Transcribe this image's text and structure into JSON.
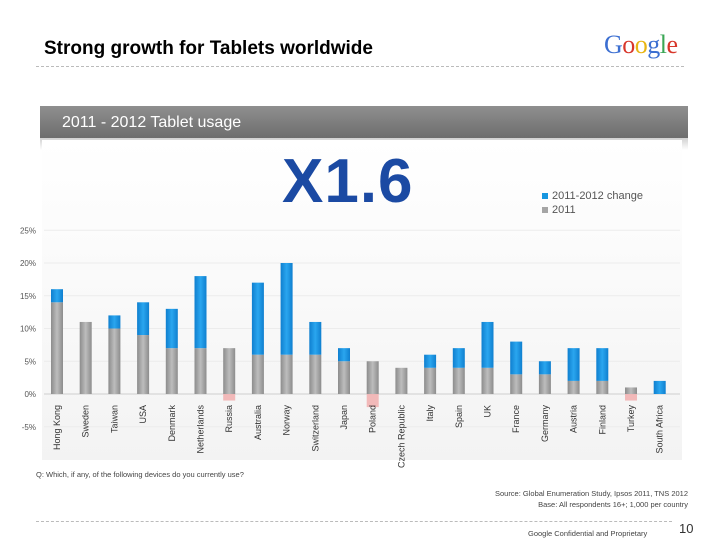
{
  "header": {
    "title": "Strong growth for Tablets worldwide",
    "logo": {
      "letters": [
        "G",
        "o",
        "o",
        "g",
        "l",
        "e"
      ],
      "colors": [
        "#3c6fd1",
        "#d8372b",
        "#e8b513",
        "#3c6fd1",
        "#3aa755",
        "#d8372b"
      ]
    }
  },
  "banner": {
    "label": "2011 - 2012 Tablet usage"
  },
  "headline": {
    "multiplier": "X1.6"
  },
  "chart_data": {
    "type": "bar",
    "stacked": true,
    "categories": [
      "Hong Kong",
      "Sweden",
      "Taiwan",
      "USA",
      "Denmark",
      "Netherlands",
      "Russia",
      "Australia",
      "Norway",
      "Switzerland",
      "Japan",
      "Poland",
      "Czech Republic",
      "Italy",
      "Spain",
      "UK",
      "France",
      "Germany",
      "Austria",
      "Finland",
      "Turkey",
      "South Africa"
    ],
    "series": [
      {
        "name": "2011",
        "color": "#a5a5a5",
        "values": [
          14,
          11,
          10,
          9,
          7,
          7,
          7,
          6,
          6,
          6,
          5,
          5,
          4,
          4,
          4,
          4,
          3,
          3,
          2,
          2,
          1,
          0
        ]
      },
      {
        "name": "2011-2012 change",
        "color": "#1696e0",
        "negative_color": "#f1aaaa",
        "values": [
          2,
          0,
          2,
          5,
          6,
          11,
          -1,
          11,
          14,
          5,
          2,
          -2,
          0,
          2,
          3,
          7,
          5,
          2,
          5,
          5,
          -1,
          2
        ]
      }
    ],
    "ylim": [
      -5,
      25
    ],
    "yticks": [
      "25%",
      "20%",
      "15%",
      "10%",
      "5%",
      "0%",
      "-5%"
    ],
    "ytick_values": [
      25,
      20,
      15,
      10,
      5,
      0,
      -5
    ],
    "legend": [
      {
        "label": "2011-2012 change",
        "color": "#1696e0"
      },
      {
        "label": "2011",
        "color": "#a5a5a5"
      }
    ],
    "legend_position": "top-right"
  },
  "footer": {
    "question": "Q: Which, if any, of the following devices do you currently use?",
    "source_line1": "Source: Global Enumeration Study, Ipsos 2011, TNS 2012",
    "source_line2": "Base: All respondents 16+; 1,000 per country",
    "confidential": "Google Confidential and Proprietary",
    "page_number": "10"
  }
}
